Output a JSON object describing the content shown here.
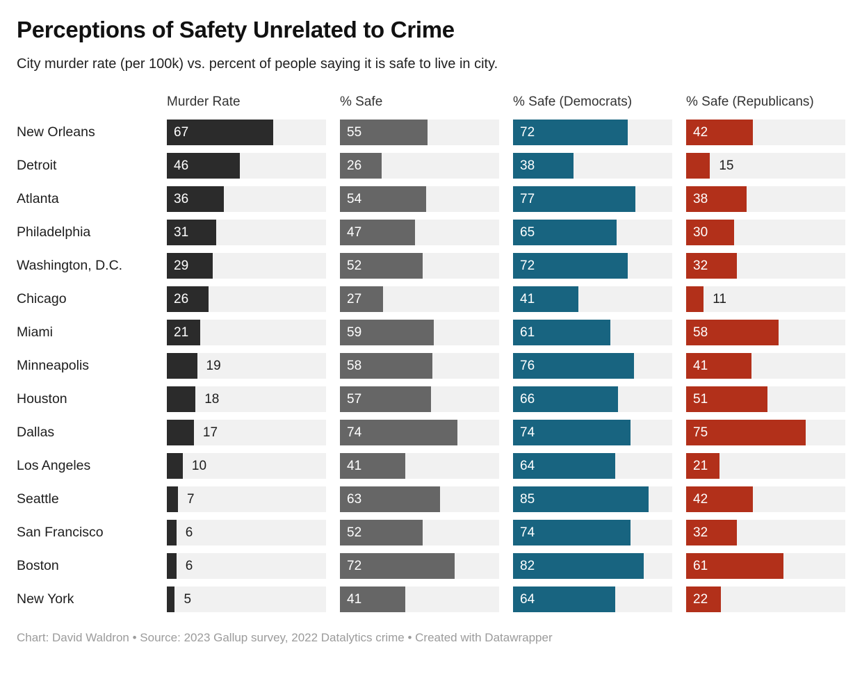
{
  "header": {
    "title": "Perceptions of Safety Unrelated to Crime",
    "subtitle": "City murder rate (per 100k) vs. percent of people saying it is safe to live in city."
  },
  "footer": {
    "text": "Chart: David Waldron • Source: 2023 Gallup survey, 2022 Datalytics crime • Created with Datawrapper"
  },
  "colors": {
    "murder_rate_bar": "#2b2b2b",
    "pct_safe_bar": "#666666",
    "democrats_bar": "#186480",
    "republicans_bar": "#b2301a",
    "track_background": "#f1f1f1",
    "outside_label": "#1d1d1d",
    "inside_label": "#ffffff",
    "footer_text": "#9b9b9b"
  },
  "chart_data": {
    "type": "bar",
    "orientation": "horizontal",
    "layout": "bar-column table, one row per city, four independent bar columns",
    "title": "Perceptions of Safety Unrelated to Crime",
    "subtitle": "City murder rate (per 100k) vs. percent of people saying it is safe to live in city.",
    "source": "Chart: David Waldron • Source: 2023 Gallup survey, 2022 Datalytics crime • Created with Datawrapper",
    "xlim": [
      0,
      100
    ],
    "grid": false,
    "legend": false,
    "inside_label_min_value": 20,
    "categories": [
      "New Orleans",
      "Detroit",
      "Atlanta",
      "Philadelphia",
      "Washington, D.C.",
      "Chicago",
      "Miami",
      "Minneapolis",
      "Houston",
      "Dallas",
      "Los Angeles",
      "Seattle",
      "San Francisco",
      "Boston",
      "New York"
    ],
    "series": [
      {
        "name": "Murder Rate",
        "color": "#2b2b2b",
        "values": [
          67,
          46,
          36,
          31,
          29,
          26,
          21,
          19,
          18,
          17,
          10,
          7,
          6,
          6,
          5
        ]
      },
      {
        "name": "% Safe",
        "color": "#666666",
        "values": [
          55,
          26,
          54,
          47,
          52,
          27,
          59,
          58,
          57,
          74,
          41,
          63,
          52,
          72,
          41
        ]
      },
      {
        "name": "% Safe (Democrats)",
        "color": "#186480",
        "values": [
          72,
          38,
          77,
          65,
          72,
          41,
          61,
          76,
          66,
          74,
          64,
          85,
          74,
          82,
          64
        ]
      },
      {
        "name": "% Safe (Republicans)",
        "color": "#b2301a",
        "values": [
          42,
          15,
          38,
          30,
          32,
          11,
          58,
          41,
          51,
          75,
          21,
          42,
          32,
          61,
          22
        ]
      }
    ]
  }
}
